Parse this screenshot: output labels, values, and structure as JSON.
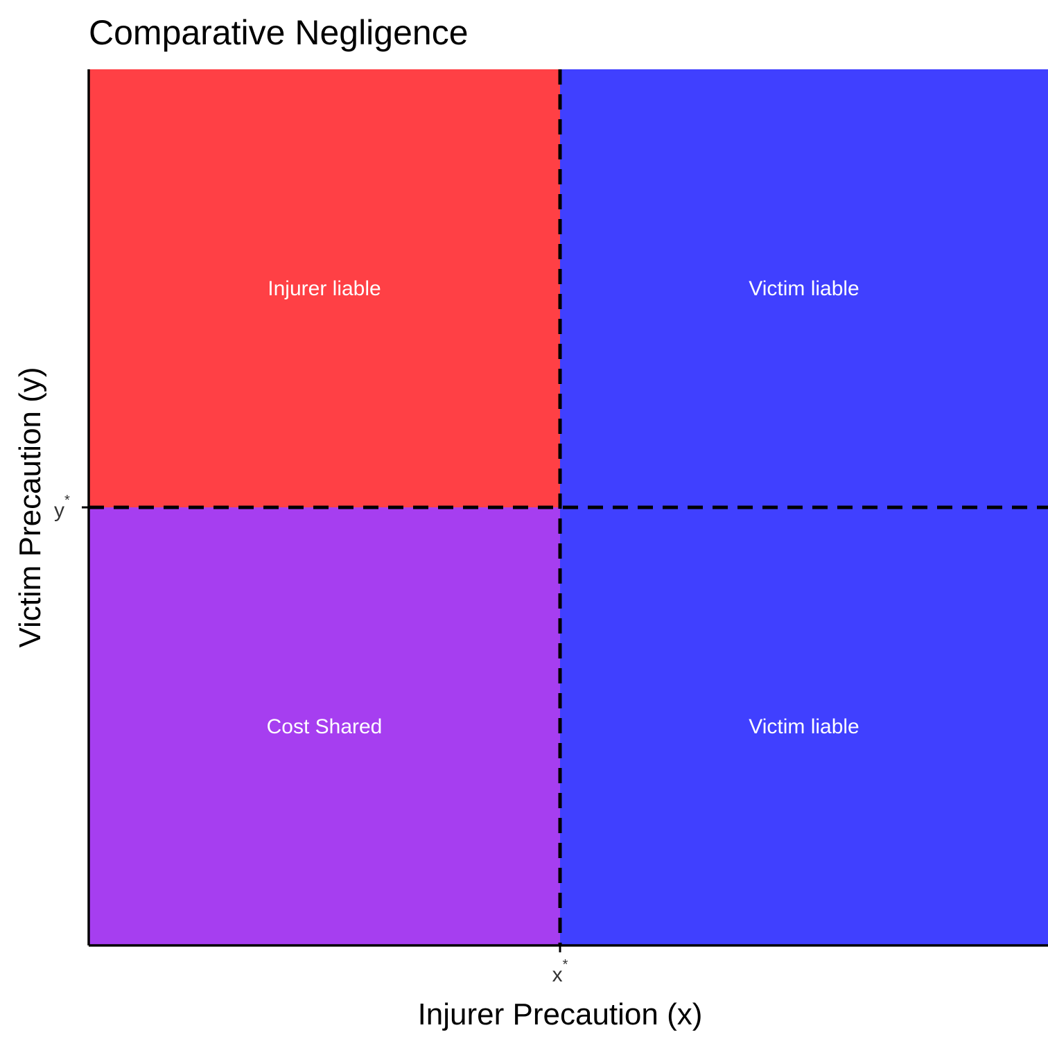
{
  "chart_data": {
    "type": "heatmap",
    "title": "Comparative Negligence",
    "xlabel": "Injurer Precaution (x)",
    "ylabel": "Victim Precaution (y)",
    "x_ticks": [
      {
        "base": "x",
        "sup": "*"
      }
    ],
    "y_ticks": [
      {
        "base": "y",
        "sup": "*"
      }
    ],
    "regions": [
      {
        "label": "Injurer liable",
        "x_side": "below x*",
        "y_side": "above y*",
        "color": "#ff4045"
      },
      {
        "label": "Victim liable",
        "x_side": "above x*",
        "y_side": "above y*",
        "color": "#4040ff"
      },
      {
        "label": "Cost Shared",
        "x_side": "below x*",
        "y_side": "below y*",
        "color": "#a63ef0"
      },
      {
        "label": "Victim liable",
        "x_side": "above x*",
        "y_side": "below y*",
        "color": "#4040ff"
      }
    ],
    "thresholds": {
      "x_line": "dashed",
      "y_line": "dashed",
      "color": "#000000"
    },
    "grid": false,
    "legend": "none"
  }
}
